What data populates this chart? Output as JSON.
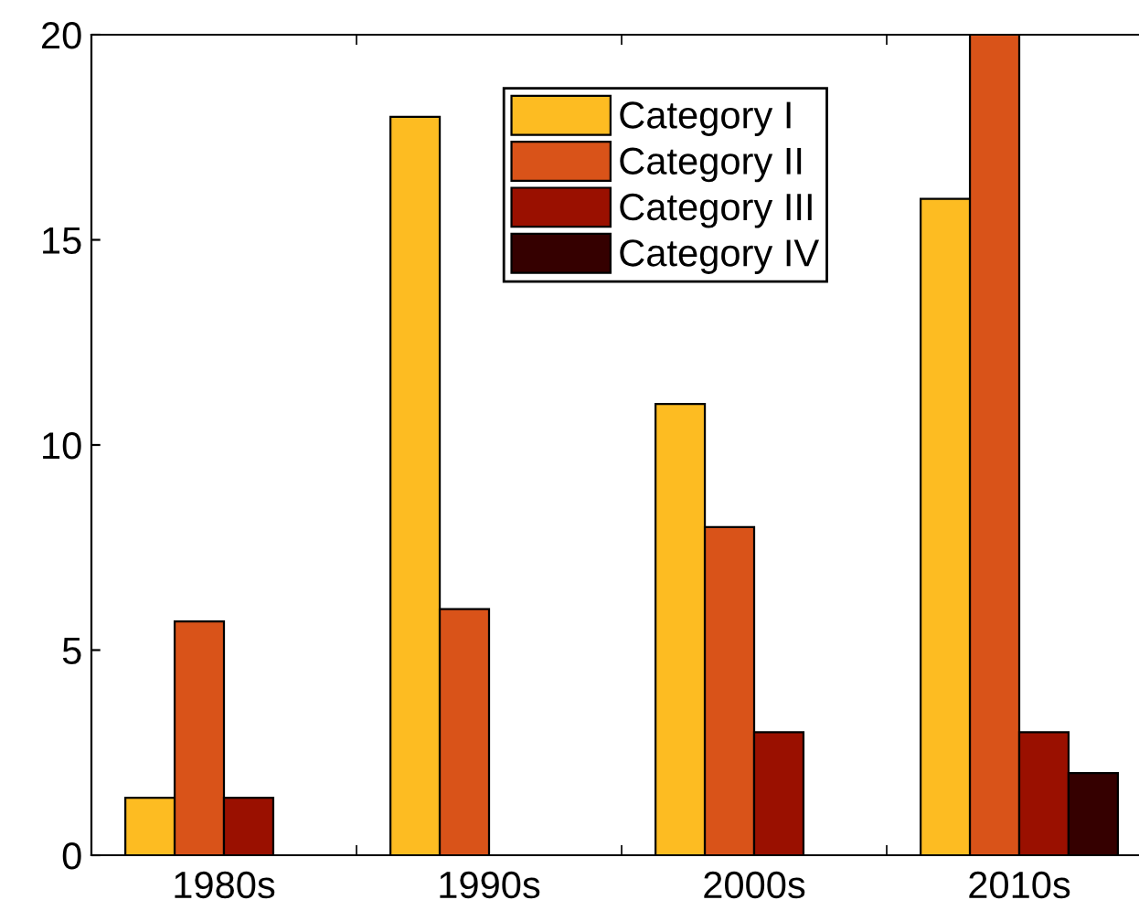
{
  "chart_data": {
    "type": "bar",
    "categories": [
      "1980s",
      "1990s",
      "2000s",
      "2010s"
    ],
    "series": [
      {
        "name": "Category I",
        "color": "#fdbc22",
        "values": [
          1.4,
          18,
          11,
          16
        ]
      },
      {
        "name": "Category II",
        "color": "#d95319",
        "values": [
          5.7,
          6,
          8,
          20
        ]
      },
      {
        "name": "Category III",
        "color": "#9a1000",
        "values": [
          1.4,
          null,
          3,
          3
        ]
      },
      {
        "name": "Category IV",
        "color": "#350000",
        "values": [
          null,
          null,
          null,
          2
        ]
      }
    ],
    "ylim": [
      0,
      20
    ],
    "yticks": [
      0,
      5,
      10,
      15,
      20
    ],
    "grid": false,
    "legend": "top"
  }
}
